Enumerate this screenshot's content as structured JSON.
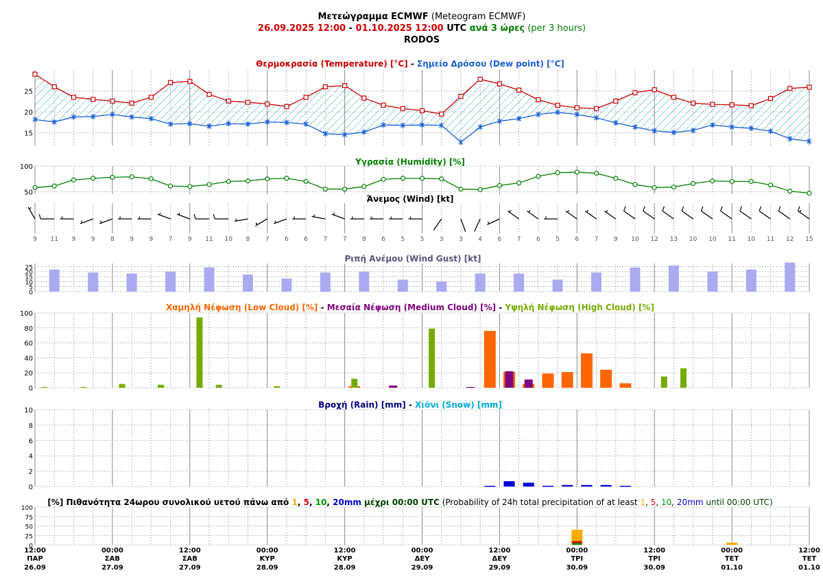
{
  "header": {
    "line1_bold": "Μετεώγραμμα ECMWF",
    "line1_rest": " (Meteogram ECMWF)",
    "range_from": "26.09.2025 12:00",
    "range_sep": " - ",
    "range_to": "01.10.2025 12:00",
    "utc": " UTC ",
    "step_gr": "ανά 3 ώρες",
    "step_en": " (per 3 hours)",
    "location": "RODOS"
  },
  "colors": {
    "temp": "#cc0000",
    "dew": "#1a5fd6",
    "humidity": "#008000",
    "gust": "#aaaaf0",
    "low_cloud": "#ff6600",
    "mid_cloud": "#800080",
    "high_cloud": "#77aa00",
    "rain": "#0000dd",
    "snow": "#00aadd"
  },
  "chart_data": [
    {
      "type": "line",
      "name": "temperature-dewpoint",
      "title_temp": "Θερμοκρασία (Temperature) [°C]",
      "title_sep": " - ",
      "title_dew": "Σημείο Δρόσου (Dew point) [°C]",
      "yticks": [
        "15",
        "20",
        "25"
      ],
      "ylim": [
        12,
        30
      ],
      "series": [
        {
          "name": "Θερμοκρασία (Temperature) [°C]",
          "values": [
            29.0,
            26.0,
            23.5,
            23.0,
            22.6,
            22.1,
            23.5,
            27.0,
            27.3,
            24.2,
            22.6,
            22.3,
            21.9,
            21.3,
            23.5,
            26.0,
            26.3,
            23.3,
            21.6,
            20.8,
            20.3,
            19.5,
            23.7,
            27.8,
            26.7,
            25.2,
            22.9,
            21.6,
            21.0,
            20.8,
            22.6,
            24.6,
            25.3,
            23.5,
            22.1,
            21.8,
            21.7,
            21.5,
            23.2,
            25.6,
            25.9
          ]
        },
        {
          "name": "Σημείο Δρόσου (Dew point) [°C]",
          "values": [
            18.2,
            17.6,
            18.8,
            18.9,
            19.4,
            18.8,
            18.4,
            17.1,
            17.2,
            16.6,
            17.2,
            17.1,
            17.6,
            17.5,
            17.1,
            14.8,
            14.6,
            15.2,
            16.9,
            16.8,
            16.9,
            16.8,
            12.8,
            16.4,
            17.8,
            18.4,
            19.4,
            19.9,
            19.4,
            18.6,
            17.4,
            16.4,
            15.5,
            15.1,
            15.6,
            16.9,
            16.4,
            16.1,
            15.4,
            13.6,
            13.0
          ]
        }
      ]
    },
    {
      "type": "line",
      "name": "humidity",
      "title": "Υγρασία (Humidity) [%]",
      "yticks": [
        "50",
        "100"
      ],
      "ylim": [
        45,
        100
      ],
      "values": [
        58,
        61,
        73,
        76,
        78,
        79,
        75,
        61,
        60,
        64,
        70,
        71,
        75,
        76,
        70,
        55,
        55,
        60,
        74,
        76,
        76,
        75,
        55,
        54,
        62,
        67,
        80,
        87,
        88,
        86,
        76,
        64,
        58,
        59,
        66,
        71,
        70,
        70,
        63,
        51,
        47
      ]
    },
    {
      "type": "table",
      "name": "wind",
      "title": "Άνεμος (Wind) [kt]",
      "speeds": [
        "9",
        "11",
        "9",
        "9",
        "8",
        "9",
        "9",
        "7",
        "9",
        "11",
        "10",
        "8",
        "7",
        "6",
        "6",
        "7",
        "7",
        "8",
        "6",
        "5",
        "5",
        "3",
        "3",
        "4",
        "6",
        "7",
        "6",
        "5",
        "6",
        "7",
        "9",
        "10",
        "12",
        "13",
        "10",
        "10",
        "11",
        "10",
        "11",
        "12",
        "15"
      ],
      "directions_deg": [
        330,
        270,
        270,
        250,
        250,
        270,
        270,
        290,
        290,
        270,
        270,
        260,
        240,
        250,
        270,
        280,
        290,
        270,
        270,
        270,
        270,
        215,
        160,
        205,
        245,
        305,
        305,
        270,
        305,
        305,
        305,
        305,
        305,
        305,
        305,
        305,
        305,
        305,
        305,
        305,
        305
      ]
    },
    {
      "type": "bar",
      "name": "wind-gust",
      "title": "Ριπή Ανέμου (Wind Gust) [kt]",
      "yticks": [
        "0",
        "5",
        "10",
        "15",
        "20",
        "25"
      ],
      "ylim": [
        0,
        28
      ],
      "values": [
        22,
        19,
        18,
        20,
        24,
        17,
        13,
        19,
        20,
        12,
        10,
        18,
        18,
        12,
        19,
        24,
        26,
        20,
        22,
        29
      ]
    },
    {
      "type": "bar",
      "name": "clouds",
      "title_low": "Χαμηλή Νέφωση (Low Cloud) [%]",
      "title_mid": "Μεσαία Νέφωση (Medium Cloud) [%]",
      "title_high": "Υψηλή Νέφωση (High Cloud) [%]",
      "title_sep": " - ",
      "yticks": [
        "0",
        "20",
        "40",
        "60",
        "80",
        "100"
      ],
      "ylim": [
        0,
        100
      ],
      "series": [
        {
          "name": "Χαμηλή Νέφωση (Low Cloud) [%]",
          "values": [
            0,
            0,
            0,
            0,
            0,
            0,
            0,
            0,
            0,
            0,
            0,
            0,
            0,
            0,
            0,
            0,
            0,
            2,
            0,
            0,
            0,
            0,
            0,
            0,
            76,
            21,
            5,
            19,
            21,
            46,
            24,
            6,
            0,
            0,
            0,
            0,
            0,
            0,
            0,
            0,
            0
          ]
        },
        {
          "name": "Μεσαία Νέφωση (Medium Cloud) [%]",
          "values": [
            0,
            0,
            0,
            0,
            0,
            0,
            0,
            0,
            0,
            0,
            0,
            0,
            0,
            0,
            0,
            0,
            0,
            0,
            0,
            3,
            0,
            0,
            0,
            1,
            0,
            22,
            11,
            0,
            0,
            0,
            0,
            0,
            0,
            0,
            0,
            0,
            0,
            0,
            0,
            0,
            0
          ]
        },
        {
          "name": "Υψηλή Νέφωση (High Cloud) [%]",
          "values": [
            0,
            1,
            0,
            1,
            0,
            5,
            0,
            4,
            0,
            94,
            4,
            0,
            0,
            2,
            0,
            0,
            0,
            12,
            0,
            0,
            0,
            79,
            0,
            0,
            0,
            0,
            0,
            0,
            0,
            0,
            0,
            0,
            0,
            15,
            26,
            0,
            0,
            0,
            0,
            0,
            0
          ]
        }
      ]
    },
    {
      "type": "bar",
      "name": "precipitation",
      "title_rain": "Βροχή (Rain) [mm]",
      "title_sep": " - ",
      "title_snow": "Χιόνι (Snow) [mm]",
      "yticks": [
        "0",
        "2",
        "4",
        "6",
        "8",
        "10"
      ],
      "ylim": [
        0,
        10
      ],
      "rain": [
        0,
        0,
        0,
        0,
        0,
        0,
        0,
        0,
        0,
        0,
        0,
        0,
        0,
        0,
        0,
        0,
        0,
        0,
        0,
        0,
        0,
        0,
        0,
        0,
        0.1,
        0.7,
        0.5,
        0.1,
        0.2,
        0.2,
        0.2,
        0.1,
        0,
        0,
        0,
        0,
        0,
        0,
        0,
        0,
        0
      ],
      "snow": [
        0,
        0,
        0,
        0,
        0,
        0,
        0,
        0,
        0,
        0,
        0,
        0,
        0,
        0,
        0,
        0,
        0,
        0,
        0,
        0,
        0,
        0,
        0,
        0,
        0,
        0,
        0,
        0,
        0,
        0,
        0,
        0,
        0,
        0,
        0,
        0,
        0,
        0,
        0,
        0,
        0
      ]
    },
    {
      "type": "bar",
      "name": "probability",
      "title_gr_a": "[%] Πιθανότητα 24ωρου συνολικού υετού πάνω από ",
      "title_gr_b": " μέχρι 00:00 UTC",
      "title_en_a": " (Probability of 24h total precipitation of at least ",
      "title_en_b": " until 00:00 UTC)",
      "thresholds": [
        "1",
        "5",
        "10",
        "20mm"
      ],
      "sep": ", ",
      "yticks": [
        "0",
        "25",
        "50",
        "75",
        "100"
      ],
      "ylim": [
        0,
        100
      ],
      "series": [
        {
          "name": "1",
          "values": [
            0,
            0,
            0,
            0,
            0,
            0,
            0,
            40,
            0,
            6,
            0
          ]
        },
        {
          "name": "5",
          "values": [
            0,
            0,
            0,
            0,
            0,
            0,
            0,
            10,
            0,
            0,
            0
          ]
        },
        {
          "name": "10",
          "values": [
            0,
            0,
            0,
            0,
            0,
            0,
            0,
            5,
            0,
            0,
            0
          ]
        },
        {
          "name": "20mm",
          "values": [
            0,
            0,
            0,
            0,
            0,
            0,
            0,
            0,
            0,
            0,
            0
          ]
        }
      ]
    }
  ],
  "xaxis": {
    "times": [
      "12:00",
      "00:00",
      "12:00",
      "00:00",
      "12:00",
      "00:00",
      "12:00",
      "00:00",
      "12:00",
      "00:00",
      "12:00"
    ],
    "days": [
      "ΠΑΡ",
      "ΣΑΒ",
      "ΣΑΒ",
      "ΚΥΡ",
      "ΚΥΡ",
      "ΔΕΥ",
      "ΔΕΥ",
      "ΤΡΙ",
      "ΤΡΙ",
      "ΤΕΤ",
      "ΤΕΤ"
    ],
    "dates": [
      "26.09",
      "27.09",
      "27.09",
      "28.09",
      "28.09",
      "29.09",
      "29.09",
      "30.09",
      "30.09",
      "01.10",
      "01.10"
    ]
  }
}
